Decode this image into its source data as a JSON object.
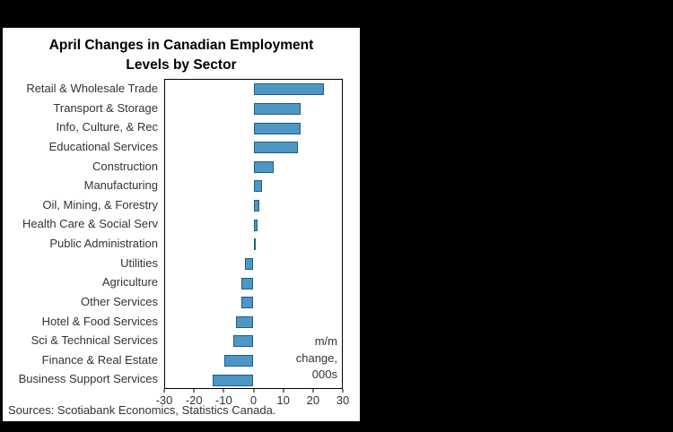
{
  "chart": {
    "title_lines": [
      "April Changes in Canadian Employment",
      "Levels by Sector"
    ],
    "annotation_lines": [
      "m/m",
      "change,",
      "000s"
    ],
    "source": "Sources: Scotiabank Economics, Statistics Canada."
  },
  "chart_data": {
    "type": "bar",
    "orientation": "horizontal",
    "title": "April Changes in Canadian Employment Levels by Sector",
    "categories": [
      "Retail & Wholesale Trade",
      "Transport & Storage",
      "Info, Culture, & Rec",
      "Educational Services",
      "Construction",
      "Manufacturing",
      "Oil, Mining, & Forestry",
      "Health Care & Social Serv",
      "Public Administration",
      "Utilities",
      "Agriculture",
      "Other Services",
      "Hotel & Food Services",
      "Sci & Technical Services",
      "Finance & Real Estate",
      "Business Support Services"
    ],
    "values": [
      24,
      16,
      16,
      15,
      7,
      3,
      2,
      1.5,
      0.5,
      -3,
      -4,
      -4,
      -6,
      -7,
      -10,
      -14
    ],
    "units": "m/m change, 000s",
    "xlabel": "",
    "ylabel": "",
    "xlim": [
      -30,
      30
    ],
    "xticks": [
      -30,
      -20,
      -10,
      0,
      10,
      20,
      30
    ],
    "grid": false,
    "legend": "none",
    "bar_color": "#4e97c5",
    "bar_border_color": "#1c5c88",
    "source": "Sources: Scotiabank Economics, Statistics Canada."
  }
}
